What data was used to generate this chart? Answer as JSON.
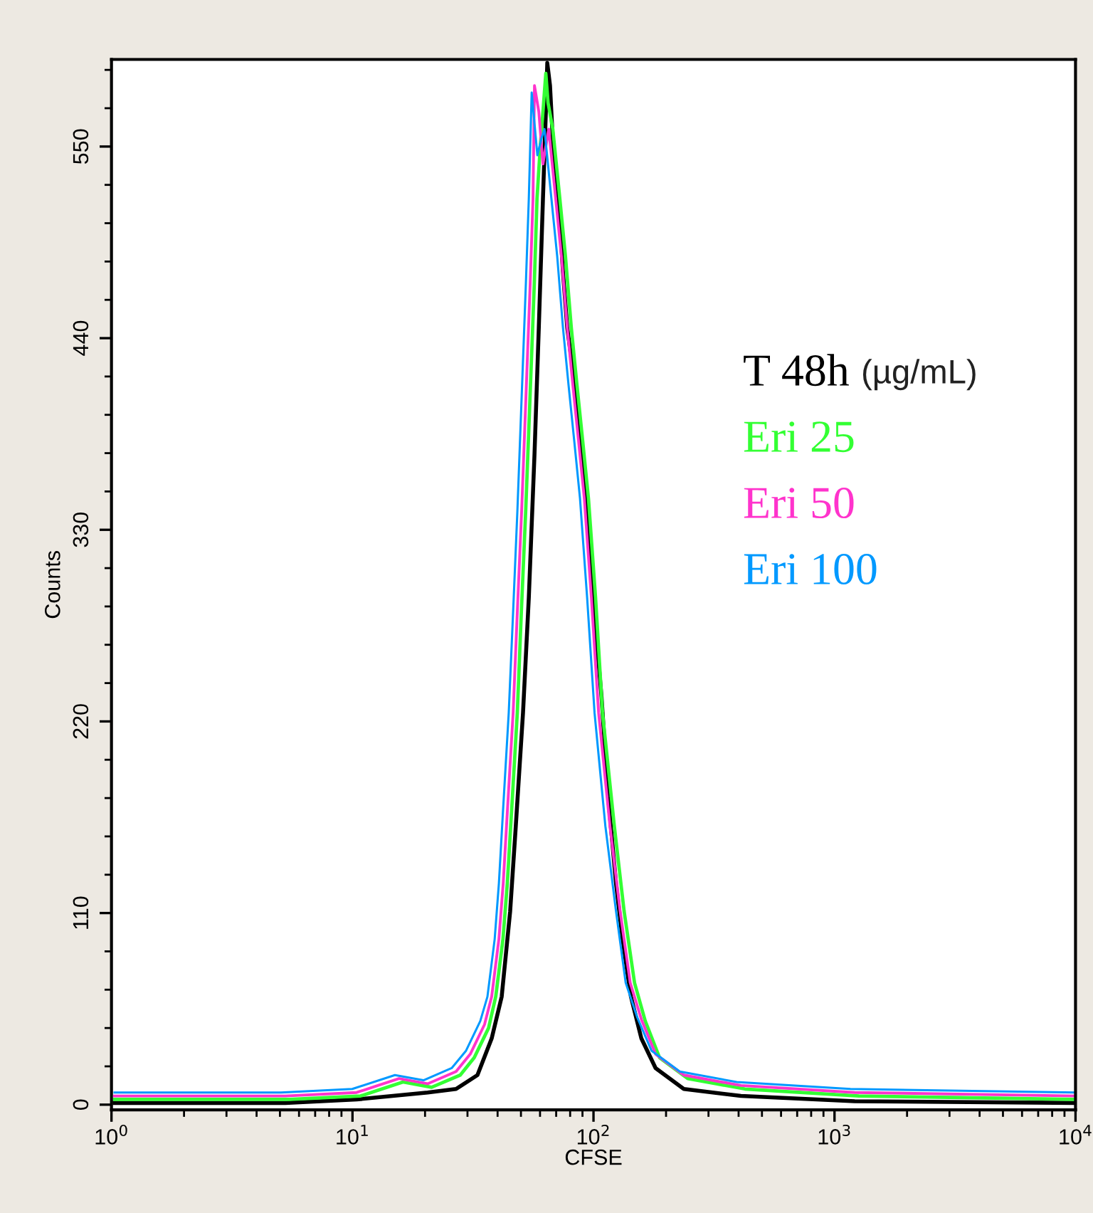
{
  "chart_data": {
    "type": "line",
    "xlabel": "CFSE",
    "ylabel": "Counts",
    "legend_title": "(µg/mL)",
    "legend": "right",
    "grid": false,
    "log": "x",
    "marker": "none",
    "line_style": "solid",
    "xlim": [
      1,
      10000
    ],
    "xticks": [
      {
        "value": 1,
        "label": "10$^{0}$"
      },
      {
        "value": 10,
        "label": "10$^{1}$"
      },
      {
        "value": 100,
        "label": "10$^{2}$"
      },
      {
        "value": 1000,
        "label": "10$^{3}$"
      },
      {
        "value": 10000,
        "label": "10$^{4}$"
      }
    ],
    "ylim": [
      -3,
      600
    ],
    "yticks": [
      0,
      110,
      220,
      330,
      440,
      550
    ],
    "series": [
      {
        "name": "T 48h",
        "color": "#000000",
        "x": [
          1.03,
          5.26,
          10.4,
          20.5,
          26.9,
          33.0,
          37.8,
          41.6,
          45.1,
          47.6,
          51.0,
          53.9,
          56.9,
          59.3,
          61.7,
          63.4,
          64.3,
          66.0,
          67.9,
          71.7,
          74.6,
          77.8,
          82.1,
          86.7,
          91.6,
          96.6,
          102,
          108,
          115,
          124,
          132,
          143,
          158,
          181,
          237,
          409,
          1213,
          10000
        ],
        "values": [
          1,
          1,
          3,
          7,
          9,
          17,
          38,
          62,
          111,
          160,
          225,
          291,
          373,
          446,
          520,
          569,
          598,
          585,
          552,
          520,
          479,
          446,
          422,
          389,
          356,
          315,
          274,
          234,
          177,
          127,
          95,
          62,
          38,
          21,
          9,
          5,
          2,
          1
        ]
      },
      {
        "name": "Eri 25",
        "color": "#33ff33",
        "x": [
          1.03,
          5.47,
          10.8,
          16.2,
          21.3,
          28.0,
          32.0,
          36.7,
          39.3,
          42.1,
          43.9,
          45.7,
          48.3,
          50.2,
          52.3,
          54.5,
          56.8,
          58.3,
          60.0,
          61.7,
          63.4,
          64.8,
          67.8,
          72.5,
          76.5,
          80.9,
          85.4,
          90.2,
          95.3,
          102,
          109,
          122,
          134,
          148,
          164,
          188,
          246,
          425,
          1262,
          10000
        ],
        "values": [
          3,
          3,
          5,
          13,
          10,
          17,
          27,
          44,
          62,
          95,
          127,
          168,
          225,
          283,
          340,
          405,
          471,
          520,
          548,
          570,
          592,
          575,
          560,
          520,
          487,
          446,
          413,
          381,
          348,
          291,
          225,
          160,
          111,
          70,
          48,
          27,
          15,
          9,
          5,
          3
        ]
      },
      {
        "name": "Eri 50",
        "color": "#ff33cc",
        "x": [
          1.03,
          5.26,
          10.4,
          15.6,
          20.5,
          26.9,
          30.8,
          35.3,
          37.8,
          40.5,
          42.2,
          43.9,
          46.4,
          48.3,
          50.3,
          52.4,
          54.6,
          56.1,
          56.9,
          59.3,
          61.7,
          65.2,
          69.7,
          73.6,
          77.8,
          82.1,
          86.7,
          91.6,
          98.0,
          105,
          117,
          129,
          142,
          158,
          181,
          237,
          409,
          1213,
          10000
        ],
        "values": [
          5,
          5,
          7,
          15,
          12,
          19,
          29,
          46,
          62,
          95,
          127,
          168,
          225,
          283,
          340,
          405,
          471,
          520,
          585,
          570,
          540,
          560,
          520,
          487,
          446,
          413,
          381,
          348,
          291,
          225,
          160,
          111,
          70,
          49,
          29,
          17,
          11,
          7,
          5
        ]
      },
      {
        "name": "Eri 100",
        "color": "#0099ff",
        "x": [
          1.03,
          5.05,
          9.98,
          15.0,
          19.7,
          25.8,
          29.6,
          33.9,
          36.3,
          38.9,
          40.5,
          42.1,
          44.5,
          46.4,
          48.3,
          50.3,
          52.4,
          53.9,
          55.4,
          58.5,
          60.9,
          62.6,
          66.9,
          70.7,
          74.7,
          78.8,
          83.2,
          87.9,
          94.1,
          101,
          112,
          124,
          136,
          152,
          174,
          228,
          393,
          1164,
          10000
        ],
        "values": [
          7,
          7,
          9,
          17,
          14,
          21,
          31,
          48,
          62,
          95,
          127,
          168,
          225,
          283,
          340,
          405,
          471,
          520,
          581,
          545,
          555,
          560,
          520,
          487,
          446,
          413,
          381,
          348,
          291,
          225,
          160,
          111,
          70,
          50,
          31,
          19,
          13,
          9,
          7
        ]
      }
    ]
  }
}
